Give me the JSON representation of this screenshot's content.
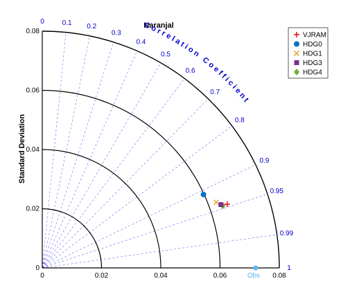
{
  "chart_data": {
    "type": "taylor",
    "title": "Naranjal",
    "ylabel": "Standard Deviation",
    "axis_title": "Correlation Coefficient",
    "std_ticks": [
      "0",
      "0.02",
      "0.04",
      "0.06",
      "0.08"
    ],
    "std_tick_values": [
      0,
      0.02,
      0.04,
      0.06,
      0.08
    ],
    "std_max": 0.08,
    "corr_ticks": [
      "0",
      "0.1",
      "0.2",
      "0.3",
      "0.4",
      "0.5",
      "0.6",
      "0.7",
      "0.8",
      "0.9",
      "0.95",
      "0.99",
      "1"
    ],
    "corr_tick_values": [
      0,
      0.1,
      0.2,
      0.3,
      0.4,
      0.5,
      0.6,
      0.7,
      0.8,
      0.9,
      0.95,
      0.99,
      1
    ],
    "std_arcs": [
      0.02,
      0.04,
      0.06,
      0.08
    ],
    "obs": {
      "label": "Obs",
      "std": 0.072,
      "color": "#5bb5f0"
    },
    "series": [
      {
        "name": "VJRAM",
        "marker": "plus",
        "color": "#e8141b",
        "x": 0.0624,
        "y": 0.0215
      },
      {
        "name": "HDG0",
        "marker": "circle",
        "color": "#0a72bd",
        "x": 0.0544,
        "y": 0.0248
      },
      {
        "name": "HDG1",
        "marker": "x",
        "color": "#e8a020",
        "x": 0.0587,
        "y": 0.0222
      },
      {
        "name": "HDG3",
        "marker": "square",
        "color": "#7b2d8e",
        "x": 0.0603,
        "y": 0.0214
      },
      {
        "name": "HDG4",
        "marker": "diamond",
        "color": "#77ac30",
        "x": 0.0609,
        "y": 0.021
      }
    ],
    "legend_position": "top-right"
  }
}
